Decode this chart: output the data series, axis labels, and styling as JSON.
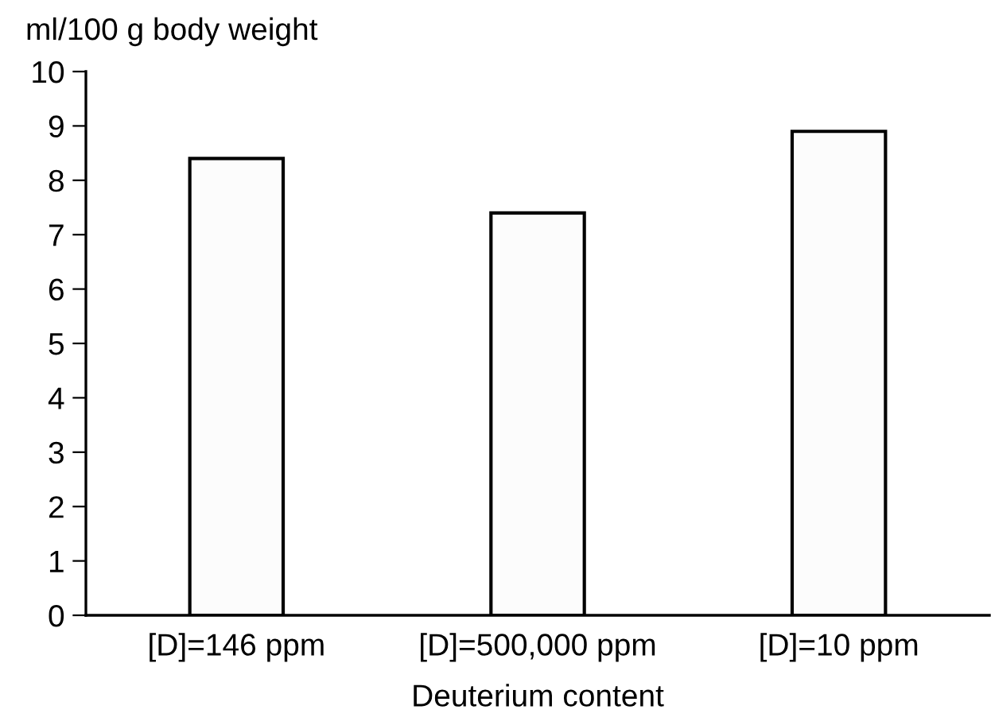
{
  "chart_data": {
    "type": "bar",
    "ylabel": "ml/100 g body weight",
    "xlabel": "Deuterium content",
    "categories": [
      "[D]=146 ppm",
      "[D]=500,000 ppm",
      "[D]=10 ppm"
    ],
    "values": [
      8.4,
      7.4,
      8.9
    ],
    "color": "#fcfcfc",
    "ylim": [
      0,
      10
    ],
    "yticks": [
      0,
      1,
      2,
      3,
      4,
      5,
      6,
      7,
      8,
      9,
      10
    ],
    "grid": false,
    "legend": false
  }
}
